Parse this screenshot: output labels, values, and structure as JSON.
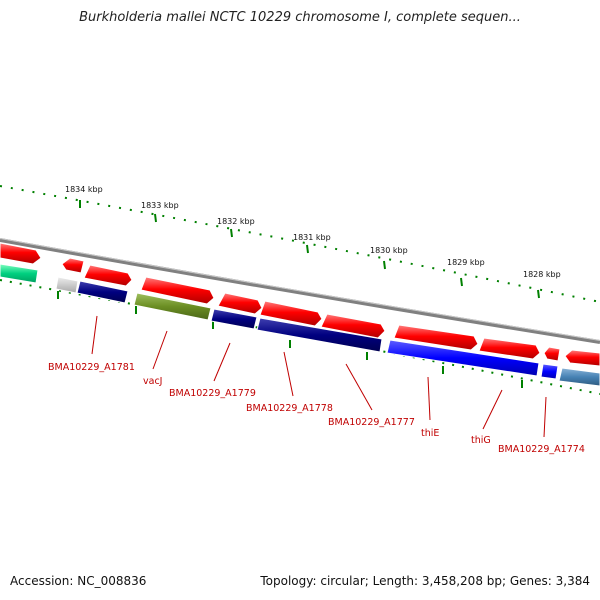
{
  "title": "Burkholderia mallei NCTC 10229 chromosome I, complete sequen...",
  "footer": {
    "accession": "Accession: NC_008836",
    "topology": "Topology: circular; Length: 3,458,208 bp; Genes: 3,384"
  },
  "kbp_labels": [
    "1834 kbp",
    "1833 kbp",
    "1832 kbp",
    "1831 kbp",
    "1830 kbp",
    "1829 kbp",
    "1828 kbp"
  ],
  "gene_labels": [
    "BMA10229_A1781",
    "vacJ",
    "BMA10229_A1779",
    "BMA10229_A1778",
    "BMA10229_A1777",
    "thiE",
    "thiG",
    "BMA10229_A1774"
  ],
  "colors": {
    "forward": "#ff0000",
    "reverse_dark": "#000080",
    "reverse_blue": "#0000ff",
    "olive": "#6b8e23",
    "grey": "#c0c0c0",
    "teal": "#00c080",
    "steel": "#4682b4",
    "tick": "#008000",
    "backbone": "#808080",
    "label": "#c00000"
  }
}
